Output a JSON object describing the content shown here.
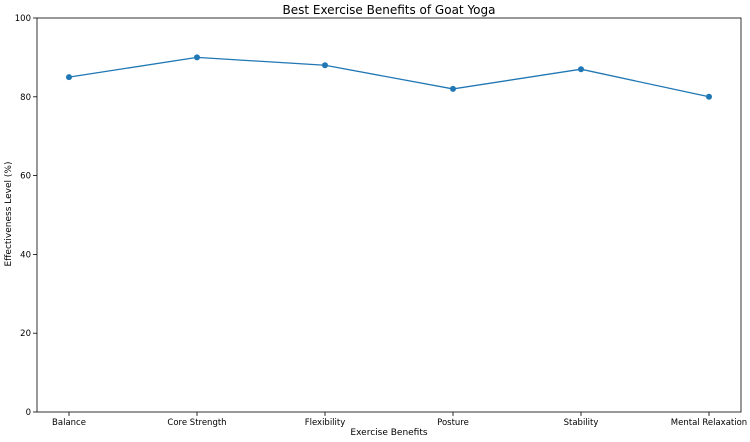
{
  "chart_data": {
    "type": "line",
    "title": "Best Exercise Benefits of Goat Yoga",
    "xlabel": "Exercise Benefits",
    "ylabel": "Effectiveness Level (%)",
    "categories": [
      "Balance",
      "Core Strength",
      "Flexibility",
      "Posture",
      "Stability",
      "Mental Relaxation"
    ],
    "values": [
      85,
      90,
      88,
      82,
      87,
      80
    ],
    "ylim": [
      0,
      100
    ],
    "yticks": [
      0,
      20,
      40,
      60,
      80,
      100
    ],
    "grid": false,
    "marker": "circle",
    "series_color": "#1f77b4"
  }
}
